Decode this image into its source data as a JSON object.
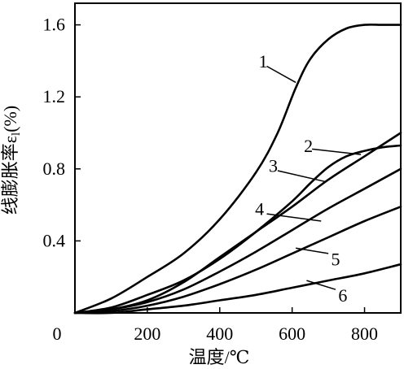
{
  "chart_data": {
    "type": "line",
    "xlabel": "温度/℃",
    "ylabel": "线膨胀率ε",
    "ylabel_sub": "l",
    "ylabel_unit": "(%)",
    "origin_label": "0",
    "xlim": [
      0,
      900
    ],
    "ylim": [
      0,
      1.72
    ],
    "xticks": [
      {
        "value": 200,
        "label": "200"
      },
      {
        "value": 400,
        "label": "400"
      },
      {
        "value": 600,
        "label": "600"
      },
      {
        "value": 800,
        "label": "800"
      }
    ],
    "yticks": [
      {
        "value": 0.4,
        "label": "0.4"
      },
      {
        "value": 0.8,
        "label": "0.8"
      },
      {
        "value": 1.2,
        "label": "1.2"
      },
      {
        "value": 1.6,
        "label": "1.6"
      }
    ],
    "grid": false,
    "series": [
      {
        "name": "1",
        "points": [
          [
            0,
            0
          ],
          [
            100,
            0.08
          ],
          [
            200,
            0.2
          ],
          [
            300,
            0.33
          ],
          [
            400,
            0.52
          ],
          [
            500,
            0.78
          ],
          [
            560,
            1.0
          ],
          [
            610,
            1.25
          ],
          [
            650,
            1.41
          ],
          [
            700,
            1.52
          ],
          [
            750,
            1.58
          ],
          [
            800,
            1.6
          ],
          [
            850,
            1.6
          ],
          [
            900,
            1.6
          ]
        ],
        "leader_from": [
          530,
          1.37
        ],
        "leader_to": [
          610,
          1.28
        ]
      },
      {
        "name": "2",
        "points": [
          [
            0,
            0
          ],
          [
            100,
            0.03
          ],
          [
            200,
            0.1
          ],
          [
            300,
            0.18
          ],
          [
            400,
            0.3
          ],
          [
            500,
            0.45
          ],
          [
            600,
            0.62
          ],
          [
            650,
            0.72
          ],
          [
            700,
            0.81
          ],
          [
            750,
            0.87
          ],
          [
            800,
            0.9
          ],
          [
            850,
            0.92
          ],
          [
            900,
            0.93
          ]
        ],
        "leader_from": [
          655,
          0.91
        ],
        "leader_to": [
          790,
          0.88
        ]
      },
      {
        "name": "3",
        "points": [
          [
            0,
            0
          ],
          [
            100,
            0.02
          ],
          [
            200,
            0.07
          ],
          [
            300,
            0.17
          ],
          [
            400,
            0.31
          ],
          [
            500,
            0.45
          ],
          [
            600,
            0.59
          ],
          [
            700,
            0.74
          ],
          [
            800,
            0.87
          ],
          [
            900,
            1.0
          ]
        ],
        "leader_from": [
          560,
          0.79
        ],
        "leader_to": [
          690,
          0.73
        ]
      },
      {
        "name": "4",
        "points": [
          [
            0,
            0
          ],
          [
            100,
            0.02
          ],
          [
            200,
            0.06
          ],
          [
            300,
            0.13
          ],
          [
            400,
            0.23
          ],
          [
            500,
            0.34
          ],
          [
            600,
            0.46
          ],
          [
            700,
            0.58
          ],
          [
            800,
            0.69
          ],
          [
            900,
            0.8
          ]
        ],
        "leader_from": [
          530,
          0.55
        ],
        "leader_to": [
          680,
          0.51
        ]
      },
      {
        "name": "5",
        "points": [
          [
            0,
            0
          ],
          [
            100,
            0.01
          ],
          [
            200,
            0.04
          ],
          [
            300,
            0.09
          ],
          [
            400,
            0.16
          ],
          [
            500,
            0.24
          ],
          [
            600,
            0.33
          ],
          [
            700,
            0.42
          ],
          [
            800,
            0.51
          ],
          [
            900,
            0.59
          ]
        ],
        "leader_from": [
          700,
          0.33
        ],
        "leader_to": [
          610,
          0.36
        ]
      },
      {
        "name": "6",
        "points": [
          [
            0,
            0
          ],
          [
            100,
            0.0
          ],
          [
            200,
            0.02
          ],
          [
            300,
            0.04
          ],
          [
            400,
            0.07
          ],
          [
            500,
            0.1
          ],
          [
            600,
            0.14
          ],
          [
            700,
            0.18
          ],
          [
            800,
            0.22
          ],
          [
            900,
            0.27
          ]
        ],
        "leader_from": [
          720,
          0.13
        ],
        "leader_to": [
          640,
          0.18
        ]
      }
    ],
    "curve_label_positions": [
      {
        "name": "1",
        "x": 520,
        "y": 1.4
      },
      {
        "name": "2",
        "x": 645,
        "y": 0.93
      },
      {
        "name": "3",
        "x": 548,
        "y": 0.82
      },
      {
        "name": "4",
        "x": 510,
        "y": 0.58
      },
      {
        "name": "5",
        "x": 720,
        "y": 0.3
      },
      {
        "name": "6",
        "x": 740,
        "y": 0.1
      }
    ]
  }
}
